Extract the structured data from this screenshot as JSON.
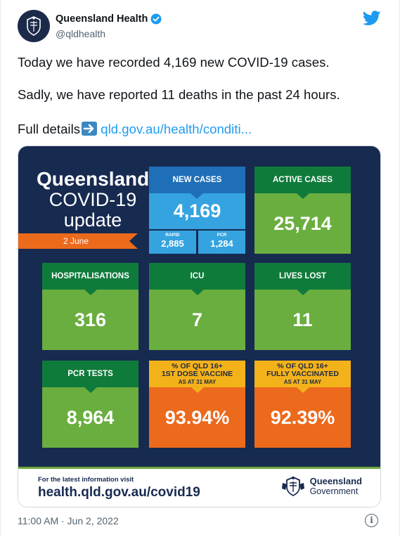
{
  "account": {
    "name": "Queensland Health",
    "handle": "@qldhealth"
  },
  "tweet": {
    "line1": "Today we have recorded 4,169 new COVID-19 cases.",
    "line2": "Sadly, we have reported 11 deaths in the past 24 hours.",
    "line3_prefix": "Full details",
    "line3_link": "qld.gov.au/health/conditi...",
    "timestamp": "11:00 AM · Jun 2, 2022"
  },
  "infographic": {
    "title1": "Queensland",
    "title2": "COVID-19",
    "title3": "update",
    "date": "2 June",
    "new_cases": {
      "label": "NEW CASES",
      "value": "4,169",
      "rapid_label": "RAPID",
      "rapid_value": "2,885",
      "pcr_label": "PCR",
      "pcr_value": "1,284"
    },
    "active_cases": {
      "label": "ACTIVE CASES",
      "value": "25,714"
    },
    "hospitalisations": {
      "label": "HOSPITALISATIONS",
      "value": "316"
    },
    "icu": {
      "label": "ICU",
      "value": "7"
    },
    "lives_lost": {
      "label": "LIVES LOST",
      "value": "11"
    },
    "pcr_tests": {
      "label": "PCR TESTS",
      "value": "8,964"
    },
    "first_dose": {
      "label_l1": "% OF QLD 16+",
      "label_l2": "1ST DOSE VACCINE",
      "label_l3": "AS AT 31 MAY",
      "value": "93.94%"
    },
    "fully_vaccinated": {
      "label_l1": "% OF QLD 16+",
      "label_l2": "FULLY VACCINATED",
      "label_l3": "AS AT 31 MAY",
      "value": "92.39%"
    },
    "footer_small": "For the latest information visit",
    "footer_url": "health.qld.gov.au/covid19",
    "gov_line1": "Queensland",
    "gov_line2": "Government"
  },
  "colors": {
    "navy": "#172a50",
    "green_dark": "#0f7b3b",
    "green": "#6aae3f",
    "blue_dark": "#1f6fb8",
    "blue": "#35a3df",
    "orange": "#ec6a1c",
    "yellow": "#f4b21a",
    "twitter_blue": "#1d9bf0"
  },
  "icons": [
    "crest-icon",
    "verified-badge-icon",
    "twitter-bird-icon",
    "right-arrow-emoji-icon",
    "info-icon"
  ]
}
